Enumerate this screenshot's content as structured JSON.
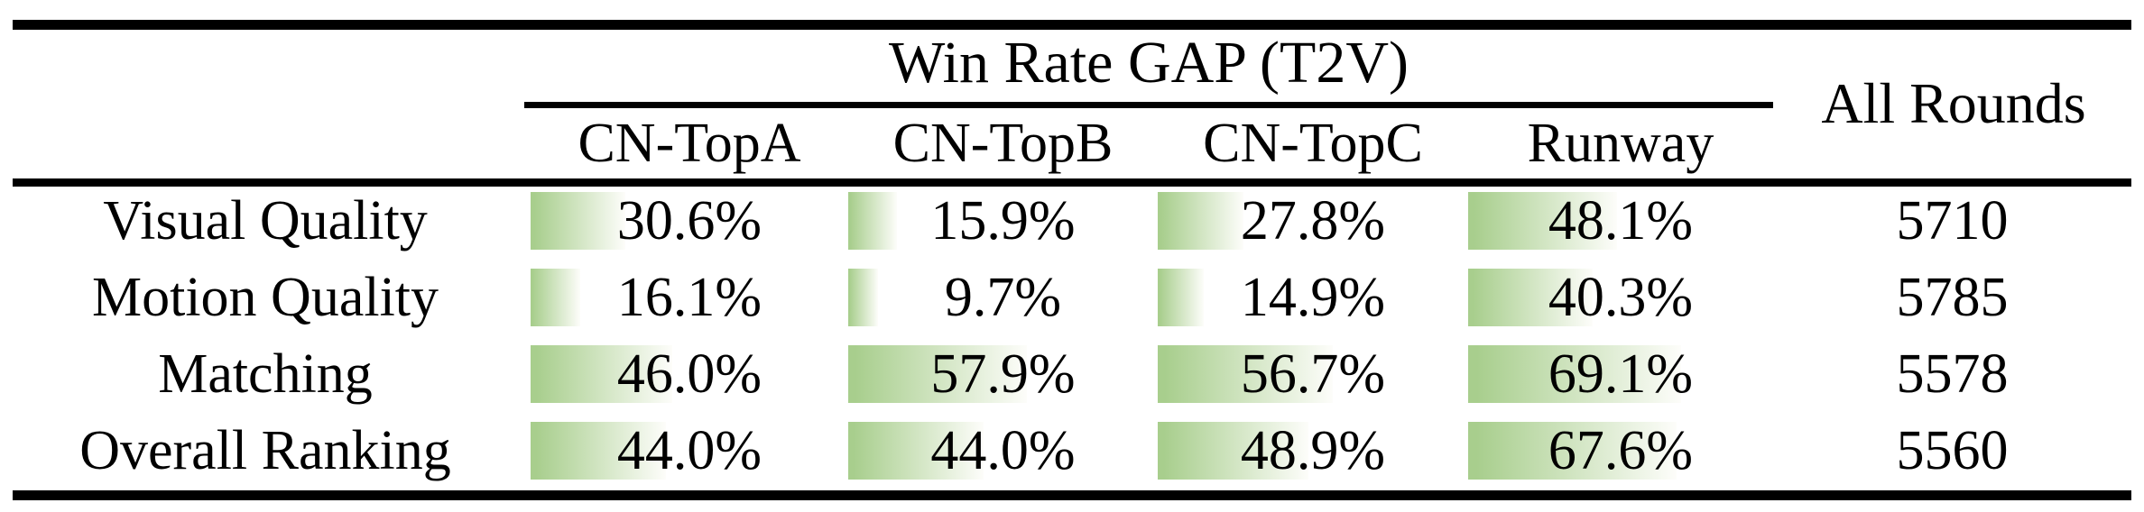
{
  "page": {
    "background": "#ffffff",
    "text_color": "#000000",
    "rule_color": "#000000"
  },
  "table": {
    "group_header": "Win Rate GAP (T2V)",
    "all_rounds_header": "All Rounds",
    "columns": [
      "CN-TopA",
      "CN-TopB",
      "CN-TopC",
      "Runway"
    ],
    "rows": [
      {
        "label": "Visual Quality",
        "values": [
          "30.6%",
          "15.9%",
          "27.8%",
          "48.1%"
        ],
        "all_rounds": "5710"
      },
      {
        "label": "Motion Quality",
        "values": [
          "16.1%",
          "9.7%",
          "14.9%",
          "40.3%"
        ],
        "all_rounds": "5785"
      },
      {
        "label": "Matching",
        "values": [
          "46.0%",
          "57.9%",
          "56.7%",
          "69.1%"
        ],
        "all_rounds": "5578"
      },
      {
        "label": "Overall Ranking",
        "values": [
          "44.0%",
          "44.0%",
          "48.9%",
          "67.6%"
        ],
        "all_rounds": "5560"
      }
    ]
  },
  "chart_data": {
    "type": "bar",
    "title": "Win Rate GAP (T2V)",
    "categories": [
      "Visual Quality",
      "Motion Quality",
      "Matching",
      "Overall Ranking"
    ],
    "series": [
      {
        "name": "CN-TopA",
        "values": [
          30.6,
          16.1,
          46.0,
          44.0
        ]
      },
      {
        "name": "CN-TopB",
        "values": [
          15.9,
          9.7,
          57.9,
          44.0
        ]
      },
      {
        "name": "CN-TopC",
        "values": [
          27.8,
          14.9,
          56.7,
          48.9
        ]
      },
      {
        "name": "Runway",
        "values": [
          48.1,
          40.3,
          69.1,
          67.6
        ]
      }
    ],
    "extra_column": {
      "name": "All Rounds",
      "values": [
        5710,
        5785,
        5578,
        5560
      ]
    },
    "unit": "%",
    "xlim": [
      0,
      100
    ],
    "bar_fill_left": "#a8ce8d",
    "bar_fill_right": "#fdfdfa",
    "layout": "horizontal in-cell data bars, bar width proportional to percent of column width"
  }
}
